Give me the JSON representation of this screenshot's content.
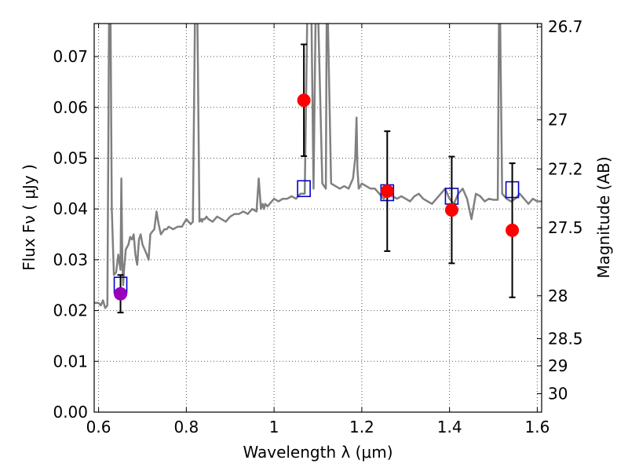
{
  "chart_data": {
    "type": "scatter",
    "xlabel": "Wavelength  λ (μm)",
    "ylabel": "Flux  Fν  ( μJy )",
    "y2label": "Magnitude (AB)",
    "xlim": [
      0.59,
      1.61
    ],
    "ylim": [
      0.0,
      0.0765
    ],
    "x_ticks": [
      {
        "value": 0.6,
        "label": "0.6"
      },
      {
        "value": 0.8,
        "label": "0.8"
      },
      {
        "value": 1.0,
        "label": "1"
      },
      {
        "value": 1.2,
        "label": "1.2"
      },
      {
        "value": 1.4,
        "label": "1.4"
      },
      {
        "value": 1.6,
        "label": "1.6"
      }
    ],
    "y_ticks": [
      {
        "value": 0.0,
        "label": "0.00"
      },
      {
        "value": 0.01,
        "label": "0.01"
      },
      {
        "value": 0.02,
        "label": "0.02"
      },
      {
        "value": 0.03,
        "label": "0.03"
      },
      {
        "value": 0.04,
        "label": "0.04"
      },
      {
        "value": 0.05,
        "label": "0.05"
      },
      {
        "value": 0.06,
        "label": "0.06"
      },
      {
        "value": 0.07,
        "label": "0.07"
      }
    ],
    "y2_ticks": [
      {
        "value": 26.7,
        "label": "26.7"
      },
      {
        "value": 27.0,
        "label": "27"
      },
      {
        "value": 27.2,
        "label": "27.2"
      },
      {
        "value": 27.5,
        "label": "27.5"
      },
      {
        "value": 28.0,
        "label": "28"
      },
      {
        "value": 28.5,
        "label": "28.5"
      },
      {
        "value": 29.0,
        "label": "29"
      },
      {
        "value": 30.0,
        "label": "30"
      }
    ],
    "grid": true,
    "colors": {
      "spectrum": "#808080",
      "observed": "#ff0000",
      "observed_first": "#9900bb",
      "model": "#0000cc",
      "errorbar": "#000000",
      "grid": "#555555"
    },
    "spectrum": {
      "x": [
        0.585,
        0.6,
        0.605,
        0.61,
        0.615,
        0.62,
        0.622,
        0.624,
        0.627,
        0.63,
        0.635,
        0.64,
        0.645,
        0.65,
        0.652,
        0.654,
        0.656,
        0.658,
        0.662,
        0.668,
        0.672,
        0.676,
        0.68,
        0.684,
        0.688,
        0.692,
        0.696,
        0.7,
        0.705,
        0.71,
        0.714,
        0.718,
        0.722,
        0.727,
        0.732,
        0.737,
        0.742,
        0.746,
        0.75,
        0.755,
        0.76,
        0.77,
        0.78,
        0.79,
        0.8,
        0.81,
        0.815,
        0.82,
        0.825,
        0.83,
        0.834,
        0.836,
        0.838,
        0.842,
        0.846,
        0.85,
        0.86,
        0.87,
        0.88,
        0.89,
        0.9,
        0.91,
        0.92,
        0.93,
        0.94,
        0.95,
        0.96,
        0.965,
        0.97,
        0.974,
        0.977,
        0.98,
        0.985,
        0.99,
        1.0,
        1.01,
        1.02,
        1.03,
        1.04,
        1.05,
        1.06,
        1.07,
        1.076,
        1.078,
        1.08,
        1.085,
        1.09,
        1.095,
        1.1,
        1.11,
        1.118,
        1.12,
        1.122,
        1.13,
        1.14,
        1.15,
        1.16,
        1.17,
        1.18,
        1.185,
        1.188,
        1.19,
        1.193,
        1.2,
        1.21,
        1.22,
        1.23,
        1.24,
        1.25,
        1.26,
        1.27,
        1.28,
        1.29,
        1.3,
        1.31,
        1.32,
        1.33,
        1.34,
        1.35,
        1.36,
        1.37,
        1.38,
        1.39,
        1.4,
        1.41,
        1.42,
        1.43,
        1.44,
        1.45,
        1.46,
        1.47,
        1.48,
        1.49,
        1.5,
        1.51,
        1.513,
        1.515,
        1.52,
        1.525,
        1.53,
        1.54,
        1.55,
        1.56,
        1.57,
        1.58,
        1.59,
        1.6,
        1.61
      ],
      "y": [
        0.0215,
        0.0215,
        0.021,
        0.022,
        0.0205,
        0.021,
        0.05,
        0.08,
        0.08,
        0.04,
        0.027,
        0.0275,
        0.031,
        0.028,
        0.046,
        0.03,
        0.025,
        0.028,
        0.032,
        0.033,
        0.0345,
        0.034,
        0.035,
        0.031,
        0.029,
        0.034,
        0.035,
        0.033,
        0.032,
        0.031,
        0.03,
        0.035,
        0.0355,
        0.036,
        0.0395,
        0.037,
        0.035,
        0.0355,
        0.036,
        0.036,
        0.0365,
        0.036,
        0.0365,
        0.0365,
        0.038,
        0.037,
        0.0375,
        0.08,
        0.08,
        0.0375,
        0.038,
        0.0375,
        0.038,
        0.038,
        0.0385,
        0.038,
        0.0375,
        0.0385,
        0.038,
        0.0375,
        0.0385,
        0.039,
        0.039,
        0.0395,
        0.039,
        0.04,
        0.0395,
        0.046,
        0.04,
        0.041,
        0.04,
        0.041,
        0.0405,
        0.041,
        0.042,
        0.0415,
        0.042,
        0.042,
        0.0425,
        0.042,
        0.043,
        0.043,
        0.08,
        0.08,
        0.08,
        0.08,
        0.044,
        0.08,
        0.08,
        0.045,
        0.044,
        0.08,
        0.08,
        0.045,
        0.0445,
        0.044,
        0.0445,
        0.044,
        0.046,
        0.05,
        0.058,
        0.048,
        0.044,
        0.045,
        0.0445,
        0.044,
        0.044,
        0.043,
        0.042,
        0.043,
        0.0425,
        0.042,
        0.0425,
        0.042,
        0.0415,
        0.0425,
        0.043,
        0.042,
        0.0415,
        0.041,
        0.042,
        0.043,
        0.044,
        0.042,
        0.041,
        0.043,
        0.044,
        0.042,
        0.038,
        0.043,
        0.0425,
        0.0415,
        0.042,
        0.0418,
        0.0418,
        0.08,
        0.08,
        0.043,
        0.0425,
        0.042,
        0.0415,
        0.042,
        0.043,
        0.042,
        0.041,
        0.042,
        0.0415,
        0.0415
      ]
    },
    "observed": {
      "x": [
        0.65,
        1.068,
        1.258,
        1.405,
        1.543
      ],
      "y": [
        0.0233,
        0.0614,
        0.0435,
        0.0398,
        0.0358
      ],
      "yerr": [
        0.0037,
        0.011,
        0.0118,
        0.0105,
        0.0132
      ]
    },
    "model": {
      "x": [
        0.65,
        1.068,
        1.258,
        1.405,
        1.543
      ],
      "y": [
        0.025,
        0.044,
        0.0432,
        0.0425,
        0.0438
      ]
    }
  }
}
